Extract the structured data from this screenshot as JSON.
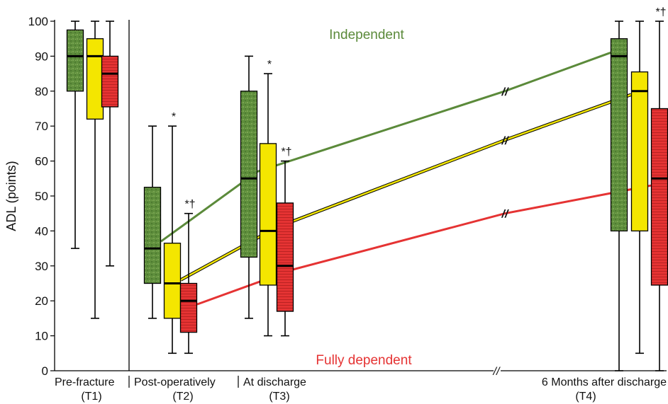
{
  "colors": {
    "independent": "#5b8a3a",
    "middle": "#f2e600",
    "dependent": "#e53333",
    "axis": "#000000"
  },
  "chart_data": {
    "type": "box",
    "ylabel": "ADL (points)",
    "ylim": [
      0,
      100
    ],
    "yticks": [
      0,
      10,
      20,
      30,
      40,
      50,
      60,
      70,
      80,
      90,
      100
    ],
    "categories": [
      {
        "line1": "Pre-fracture",
        "line2": "(T1)"
      },
      {
        "line1": "Post-operatively",
        "line2": "(T2)"
      },
      {
        "line1": "At discharge",
        "line2": "(T3)"
      },
      {
        "line1": "6 Months after discharge",
        "line2": "(T4)"
      }
    ],
    "region_labels": {
      "top": "Independent",
      "bottom": "Fully dependent"
    },
    "series": [
      {
        "color_key": "independent",
        "boxes": [
          {
            "min": 35,
            "q1": 80,
            "median": 90,
            "q3": 97.5,
            "max": 100,
            "annotation": ""
          },
          {
            "min": 15,
            "q1": 25,
            "median": 35,
            "q3": 52.5,
            "max": 70,
            "annotation": ""
          },
          {
            "min": 15,
            "q1": 32.5,
            "median": 55,
            "q3": 80,
            "max": 90,
            "annotation": ""
          },
          {
            "min": 0,
            "q1": 40,
            "median": 90,
            "q3": 95,
            "max": 100,
            "annotation": ""
          }
        ]
      },
      {
        "color_key": "middle",
        "boxes": [
          {
            "min": 15,
            "q1": 72,
            "median": 90,
            "q3": 95,
            "max": 100,
            "annotation": ""
          },
          {
            "min": 5,
            "q1": 15,
            "median": 25,
            "q3": 36.5,
            "max": 70,
            "annotation": "*"
          },
          {
            "min": 10,
            "q1": 24.5,
            "median": 40,
            "q3": 65,
            "max": 85,
            "annotation": "*"
          },
          {
            "min": 5,
            "q1": 40,
            "median": 80,
            "q3": 85.5,
            "max": 100,
            "annotation": ""
          }
        ]
      },
      {
        "color_key": "dependent",
        "boxes": [
          {
            "min": 30,
            "q1": 75.5,
            "median": 85,
            "q3": 90,
            "max": 100,
            "annotation": ""
          },
          {
            "min": 5,
            "q1": 11,
            "median": 20,
            "q3": 25,
            "max": 45,
            "annotation": "*†"
          },
          {
            "min": 10,
            "q1": 17,
            "median": 30,
            "q3": 48,
            "max": 60,
            "annotation": "*†"
          },
          {
            "min": 0,
            "q1": 24.5,
            "median": 55,
            "q3": 75,
            "max": 100,
            "annotation": "*†"
          }
        ]
      }
    ],
    "trend_lines": [
      {
        "color_key": "independent",
        "values": [
          37,
          57,
          80,
          91
        ]
      },
      {
        "color_key": "middle",
        "values": [
          26,
          41,
          66,
          79
        ]
      },
      {
        "color_key": "dependent",
        "values": [
          19,
          29,
          45,
          53
        ]
      }
    ],
    "axis_break_symbol": "//"
  }
}
